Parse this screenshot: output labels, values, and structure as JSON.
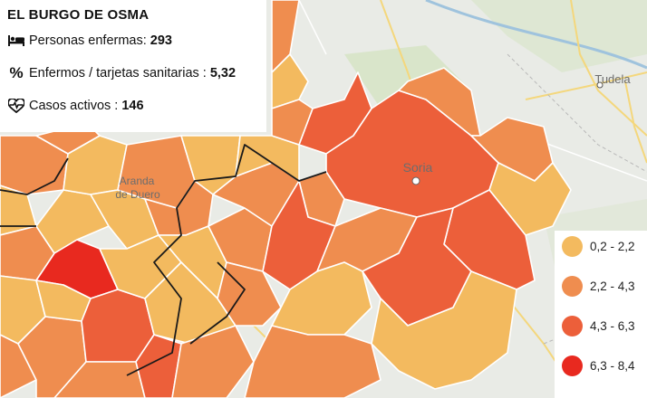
{
  "map": {
    "place_labels": [
      {
        "name": "Soria"
      },
      {
        "name": "Tudela"
      },
      {
        "name": "Aranda"
      },
      {
        "name": "de Duero"
      }
    ]
  },
  "info": {
    "title": "EL BURGO DE OSMA",
    "rows": [
      {
        "icon": "bed-icon",
        "label": "Personas enfermas:",
        "value": "293"
      },
      {
        "icon": "percent-icon",
        "label": "Enfermos / tarjetas sanitarias :",
        "value": "5,32"
      },
      {
        "icon": "heartbeat-icon",
        "label": "Casos activos :",
        "value": "146"
      }
    ]
  },
  "legend": {
    "items": [
      {
        "label": "0,2 - 2,2",
        "color": "#f3ba5f"
      },
      {
        "label": "2,2 - 4,3",
        "color": "#ef8d4f"
      },
      {
        "label": "4,3 - 6,3",
        "color": "#ec5f3a"
      },
      {
        "label": "6,3 - 8,4",
        "color": "#e8291f"
      }
    ]
  }
}
